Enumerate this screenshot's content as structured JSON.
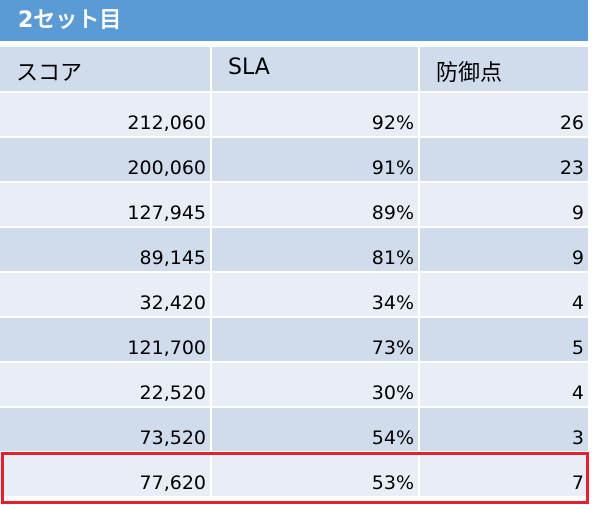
{
  "title": "2セット目",
  "columns": [
    "スコア",
    "SLA",
    "防御点"
  ],
  "rows": [
    [
      "212,060",
      "92%",
      "26"
    ],
    [
      "200,060",
      "91%",
      "23"
    ],
    [
      "127,945",
      "89%",
      "9"
    ],
    [
      "89,145",
      "81%",
      "9"
    ],
    [
      "32,420",
      "34%",
      "4"
    ],
    [
      "121,700",
      "73%",
      "5"
    ],
    [
      "22,520",
      "30%",
      "4"
    ],
    [
      "73,520",
      "54%",
      "3"
    ],
    [
      "77,620",
      "53%",
      "7"
    ]
  ],
  "highlighted_row": 8,
  "colors": {
    "title_bg": "#5b9bd5",
    "row_light": "#e9eef6",
    "row_dark": "#d0dcec",
    "highlight_border": "#e5202e"
  }
}
